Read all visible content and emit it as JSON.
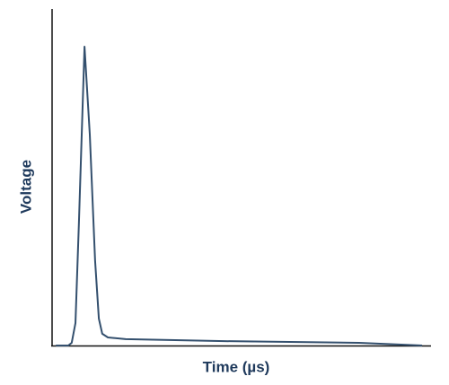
{
  "chart_data": {
    "type": "line",
    "x_label": "Time (µs)",
    "y_label": "Voltage",
    "x": [
      1.0,
      4.3,
      5.2,
      6.2,
      7.1,
      8.6,
      10.0,
      11.4,
      12.4,
      13.3,
      14.8,
      19.5,
      45.7,
      81.4,
      98.1
    ],
    "series": [
      {
        "color": "#34506e",
        "values": [
          0,
          0,
          0.8,
          6.7,
          36,
          88.8,
          62.7,
          25.3,
          8,
          3.5,
          2.4,
          1.9,
          1.3,
          0.8,
          0
        ]
      }
    ],
    "xlim": [
      0,
      100
    ],
    "ylim": [
      0,
      100
    ]
  }
}
